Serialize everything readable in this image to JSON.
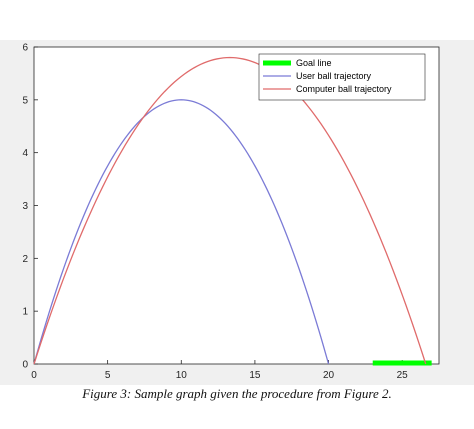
{
  "chart_data": {
    "type": "line",
    "title": "",
    "xlabel": "",
    "ylabel": "",
    "xlim": [
      0,
      27.5
    ],
    "ylim": [
      0,
      6
    ],
    "xticks": [
      0,
      5,
      10,
      15,
      20,
      25
    ],
    "yticks": [
      0,
      1,
      2,
      3,
      4,
      5,
      6
    ],
    "grid": false,
    "legend_position": "top-right",
    "series": [
      {
        "name": "Goal line",
        "color": "#00ff00",
        "kind": "segment",
        "x": [
          23,
          27
        ],
        "y": [
          0,
          0
        ]
      },
      {
        "name": "User ball trajectory",
        "color": "#7b7bd6",
        "kind": "parabola",
        "x_start": 0,
        "x_end": 20,
        "peak_x": 10,
        "peak_y": 5
      },
      {
        "name": "Computer ball trajectory",
        "color": "#e06b6b",
        "kind": "parabola",
        "x_start": 0,
        "x_end": 26.6,
        "peak_x": 13.3,
        "peak_y": 5.8
      }
    ]
  },
  "caption": "Figure 3: Sample graph given the procedure from Figure 2."
}
